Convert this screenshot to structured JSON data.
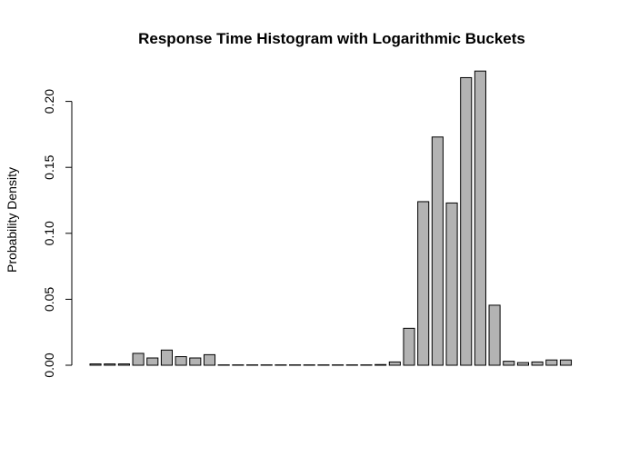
{
  "chart_data": {
    "type": "bar",
    "title": "Response Time Histogram with Logarithmic Buckets",
    "xlabel": "",
    "ylabel": "Probability Density",
    "ylim": [
      0,
      0.225
    ],
    "yticks": [
      "0.00",
      "0.05",
      "0.10",
      "0.15",
      "0.20"
    ],
    "grid": false,
    "bar_color": "#b3b3b3",
    "values": [
      0.001,
      0.001,
      0.001,
      0.009,
      0.0055,
      0.0115,
      0.0065,
      0.0055,
      0.008,
      0.0002,
      0.0002,
      0.0002,
      0.0002,
      0.0002,
      0.0002,
      0.0002,
      0.0002,
      0.0002,
      0.0002,
      0.0002,
      0.0005,
      0.0025,
      0.028,
      0.124,
      0.173,
      0.123,
      0.218,
      0.223,
      0.0455,
      0.003,
      0.002,
      0.0025,
      0.004,
      0.004
    ]
  }
}
